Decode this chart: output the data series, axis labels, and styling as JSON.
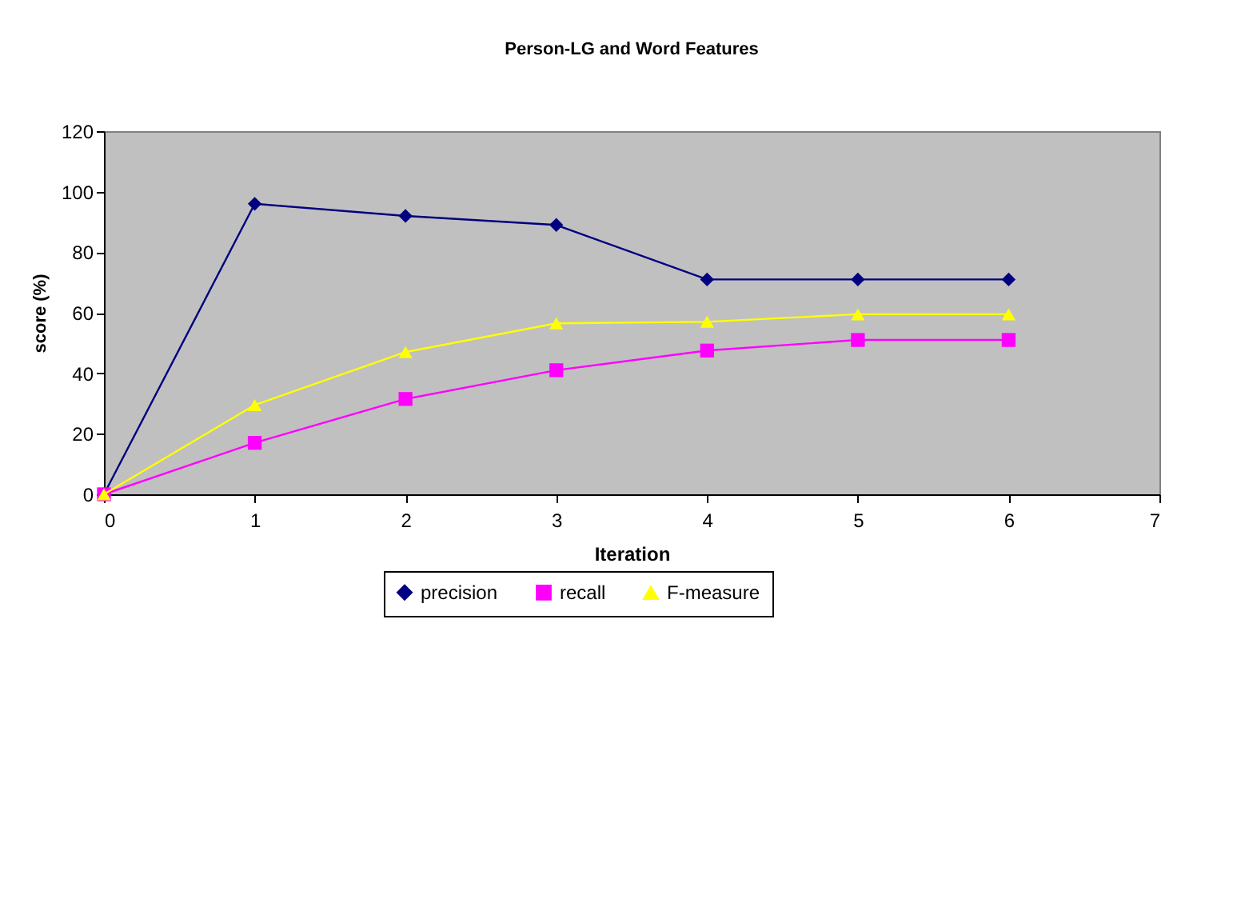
{
  "chart_data": {
    "type": "line",
    "title": "Person-LG and Word Features",
    "xlabel": "Iteration",
    "ylabel": "score (%)",
    "x": [
      0,
      1,
      2,
      3,
      4,
      5,
      6
    ],
    "series": [
      {
        "name": "precision",
        "color": "#000080",
        "marker": "diamond",
        "values": [
          0,
          96,
          92,
          89,
          71,
          71,
          71
        ]
      },
      {
        "name": "recall",
        "color": "#ff00ff",
        "marker": "square",
        "values": [
          0,
          17,
          31.5,
          41,
          47.5,
          51,
          51
        ]
      },
      {
        "name": "F-measure",
        "color": "#ffff00",
        "marker": "triangle",
        "values": [
          0,
          29.5,
          47,
          56.5,
          57,
          59.5,
          59.5
        ]
      }
    ],
    "xlim": [
      0,
      7
    ],
    "xticks": [
      0,
      1,
      2,
      3,
      4,
      5,
      6,
      7
    ],
    "ylim": [
      0,
      120
    ],
    "yticks": [
      0,
      20,
      40,
      60,
      80,
      100,
      120
    ],
    "grid": false,
    "legend": "bottom",
    "line_style": "solid"
  }
}
